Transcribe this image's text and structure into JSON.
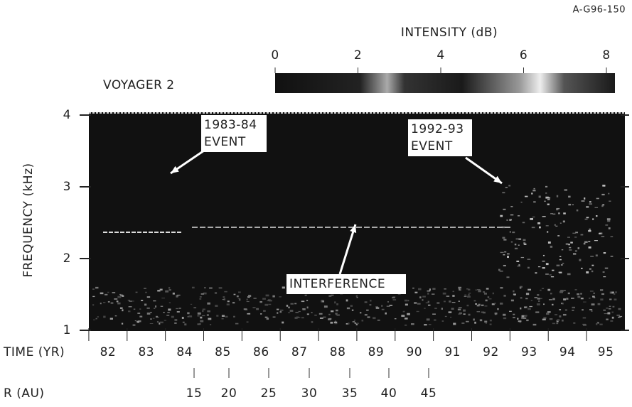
{
  "chart_data": {
    "type": "spectrogram",
    "figure_id": "A-G96-150",
    "title": "VOYAGER 2",
    "colorbar_label": "INTENSITY (dB)",
    "clim": [
      0,
      8
    ],
    "cticks": [
      0,
      2,
      4,
      6,
      8
    ],
    "y_label": "FREQUENCY (kHz)",
    "ylim": [
      1,
      4
    ],
    "yticks": [
      1,
      2,
      3,
      4
    ],
    "x_label": "TIME (YR)",
    "xlim": [
      81.5,
      95.5
    ],
    "xticks": [
      82,
      83,
      84,
      85,
      86,
      87,
      88,
      89,
      90,
      91,
      92,
      93,
      94,
      95
    ],
    "r_label": "R (AU)",
    "r_ticks": [
      15,
      20,
      25,
      30,
      35,
      40,
      45
    ],
    "annotations": [
      {
        "lines": [
          "1983-84",
          "EVENT"
        ]
      },
      {
        "lines": [
          "1992-93",
          "EVENT"
        ]
      },
      {
        "lines": [
          "INTERFERENCE"
        ]
      }
    ]
  }
}
